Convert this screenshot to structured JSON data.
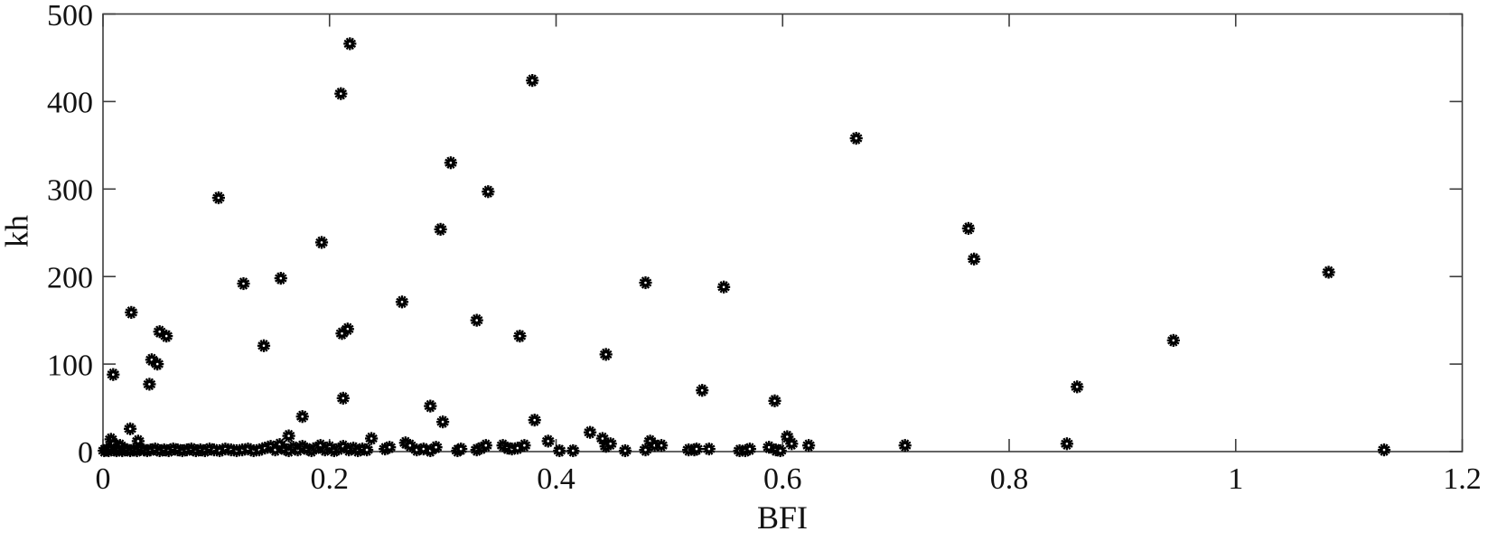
{
  "chart_data": {
    "type": "scatter",
    "title": "",
    "xlabel": "BFI",
    "ylabel": "kh",
    "xlim": [
      0,
      1.2
    ],
    "ylim": [
      0,
      500
    ],
    "xticks": [
      0,
      0.2,
      0.4,
      0.6,
      0.8,
      1,
      1.2
    ],
    "xtick_labels": [
      "0",
      "0.2",
      "0.4",
      "0.6",
      "0.8",
      "1",
      "1.2"
    ],
    "yticks": [
      0,
      100,
      200,
      300,
      400,
      500
    ],
    "ytick_labels": [
      "0",
      "100",
      "200",
      "300",
      "400",
      "500"
    ],
    "grid": false,
    "box": true,
    "legend_position": "none",
    "marker": "gear-asterisk",
    "marker_size_px": 15,
    "marker_color": "#000000",
    "axis_color": "#3d3d3d",
    "text_color": "#111111",
    "background_color": "#ffffff",
    "points": [
      [
        0.218,
        466
      ],
      [
        0.21,
        409
      ],
      [
        0.379,
        424
      ],
      [
        0.665,
        358
      ],
      [
        0.307,
        330
      ],
      [
        0.34,
        297
      ],
      [
        0.102,
        290
      ],
      [
        0.764,
        255
      ],
      [
        0.298,
        254
      ],
      [
        0.193,
        239
      ],
      [
        0.769,
        220
      ],
      [
        1.082,
        205
      ],
      [
        0.157,
        198
      ],
      [
        0.479,
        193
      ],
      [
        0.124,
        192
      ],
      [
        0.548,
        188
      ],
      [
        0.264,
        171
      ],
      [
        0.025,
        159
      ],
      [
        0.33,
        150
      ],
      [
        0.216,
        140
      ],
      [
        0.211,
        135
      ],
      [
        0.05,
        137
      ],
      [
        0.056,
        132
      ],
      [
        0.368,
        132
      ],
      [
        0.945,
        127
      ],
      [
        0.142,
        121
      ],
      [
        0.444,
        111
      ],
      [
        0.043,
        105
      ],
      [
        0.048,
        100
      ],
      [
        0.009,
        88
      ],
      [
        0.041,
        77
      ],
      [
        0.86,
        74
      ],
      [
        0.529,
        70
      ],
      [
        0.212,
        61
      ],
      [
        0.593,
        58
      ],
      [
        0.289,
        52
      ],
      [
        0.176,
        40
      ],
      [
        0.381,
        36
      ],
      [
        0.3,
        34
      ],
      [
        0.024,
        26
      ],
      [
        0.43,
        22
      ],
      [
        0.164,
        18
      ],
      [
        0.604,
        17
      ],
      [
        0.237,
        15
      ],
      [
        0.441,
        15
      ],
      [
        0.007,
        14
      ],
      [
        0.031,
        12
      ],
      [
        0.483,
        12
      ],
      [
        0.393,
        12
      ],
      [
        0.009,
        9
      ],
      [
        0.015,
        7
      ],
      [
        0.001,
        1
      ],
      [
        0.003,
        2
      ],
      [
        0.005,
        1
      ],
      [
        0.007,
        3
      ],
      [
        0.01,
        2
      ],
      [
        0.012,
        1
      ],
      [
        0.014,
        2
      ],
      [
        0.017,
        1
      ],
      [
        0.019,
        3
      ],
      [
        0.021,
        2
      ],
      [
        0.024,
        1
      ],
      [
        0.027,
        2
      ],
      [
        0.03,
        1
      ],
      [
        0.033,
        3
      ],
      [
        0.036,
        2
      ],
      [
        0.039,
        1
      ],
      [
        0.042,
        2
      ],
      [
        0.046,
        3
      ],
      [
        0.05,
        1
      ],
      [
        0.054,
        2
      ],
      [
        0.058,
        1
      ],
      [
        0.062,
        3
      ],
      [
        0.066,
        2
      ],
      [
        0.07,
        1
      ],
      [
        0.074,
        2
      ],
      [
        0.078,
        3
      ],
      [
        0.082,
        1
      ],
      [
        0.086,
        2
      ],
      [
        0.09,
        1
      ],
      [
        0.094,
        3
      ],
      [
        0.098,
        2
      ],
      [
        0.103,
        1
      ],
      [
        0.108,
        3
      ],
      [
        0.113,
        2
      ],
      [
        0.118,
        1
      ],
      [
        0.123,
        2
      ],
      [
        0.128,
        3
      ],
      [
        0.133,
        1
      ],
      [
        0.138,
        2
      ],
      [
        0.143,
        4
      ],
      [
        0.148,
        6
      ],
      [
        0.152,
        2
      ],
      [
        0.156,
        8
      ],
      [
        0.16,
        3
      ],
      [
        0.164,
        1
      ],
      [
        0.168,
        5
      ],
      [
        0.172,
        2
      ],
      [
        0.176,
        6
      ],
      [
        0.18,
        3
      ],
      [
        0.184,
        1
      ],
      [
        0.188,
        4
      ],
      [
        0.192,
        7
      ],
      [
        0.196,
        2
      ],
      [
        0.2,
        5
      ],
      [
        0.204,
        1
      ],
      [
        0.208,
        3
      ],
      [
        0.212,
        6
      ],
      [
        0.217,
        2
      ],
      [
        0.221,
        4
      ],
      [
        0.225,
        1
      ],
      [
        0.229,
        3
      ],
      [
        0.233,
        2
      ],
      [
        0.249,
        3
      ],
      [
        0.253,
        5
      ],
      [
        0.267,
        10
      ],
      [
        0.271,
        7
      ],
      [
        0.277,
        2
      ],
      [
        0.283,
        3
      ],
      [
        0.289,
        1
      ],
      [
        0.294,
        5
      ],
      [
        0.313,
        1
      ],
      [
        0.316,
        3
      ],
      [
        0.33,
        2
      ],
      [
        0.334,
        4
      ],
      [
        0.338,
        7
      ],
      [
        0.353,
        7
      ],
      [
        0.357,
        4
      ],
      [
        0.361,
        3
      ],
      [
        0.366,
        4
      ],
      [
        0.372,
        7
      ],
      [
        0.403,
        1
      ],
      [
        0.415,
        1
      ],
      [
        0.444,
        6
      ],
      [
        0.448,
        9
      ],
      [
        0.461,
        1
      ],
      [
        0.479,
        2
      ],
      [
        0.487,
        7
      ],
      [
        0.493,
        7
      ],
      [
        0.517,
        2
      ],
      [
        0.522,
        2
      ],
      [
        0.524,
        3
      ],
      [
        0.535,
        3
      ],
      [
        0.562,
        1
      ],
      [
        0.567,
        1
      ],
      [
        0.571,
        3
      ],
      [
        0.588,
        5
      ],
      [
        0.594,
        2
      ],
      [
        0.598,
        1
      ],
      [
        0.608,
        9
      ],
      [
        0.623,
        7
      ],
      [
        0.708,
        7
      ],
      [
        0.851,
        9
      ],
      [
        1.131,
        2
      ]
    ]
  }
}
